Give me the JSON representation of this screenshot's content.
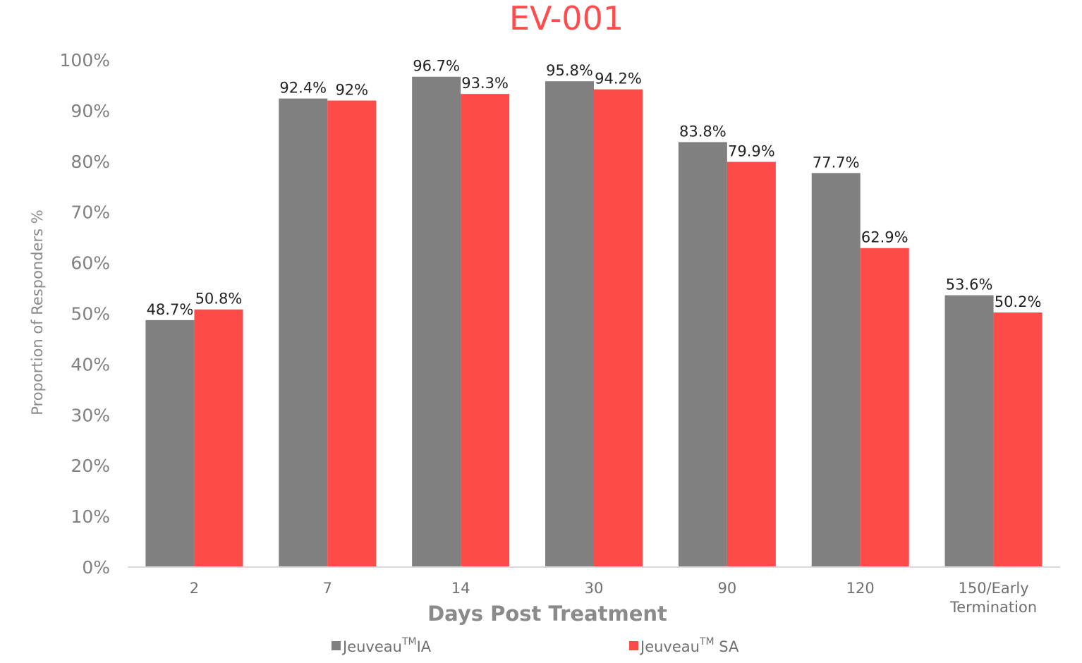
{
  "chart_data": {
    "type": "bar",
    "title": "EV-001",
    "xlabel": "Days Post Treatment",
    "ylabel": "Proportion of Responders %",
    "ylim": [
      0,
      100
    ],
    "yticks": [
      "0%",
      "10%",
      "20%",
      "30%",
      "40%",
      "50%",
      "60%",
      "70%",
      "80%",
      "90%",
      "100%"
    ],
    "grid": false,
    "legend_position": "bottom",
    "categories": [
      "2",
      "7",
      "14",
      "30",
      "90",
      "120",
      "150/Early Termination"
    ],
    "series": [
      {
        "name": "Jeuveau IA",
        "legend_base": "Jeuveau",
        "legend_sup": "TM",
        "legend_suffix": "IA",
        "color": "#808080",
        "values": [
          48.7,
          92.4,
          96.7,
          95.8,
          83.8,
          77.7,
          53.6
        ],
        "labels": [
          "48.7%",
          "92.4%",
          "96.7%",
          "95.8%",
          "83.8%",
          "77.7%",
          "53.6%"
        ]
      },
      {
        "name": "Jeuveau SA",
        "legend_base": "Jeuveau",
        "legend_sup": "TM",
        "legend_suffix": " SA",
        "color": "#ff4a4a",
        "values": [
          50.8,
          92,
          93.3,
          94.2,
          79.9,
          62.9,
          50.2
        ],
        "labels": [
          "50.8%",
          "92%",
          "93.3%",
          "94.2%",
          "79.9%",
          "62.9%",
          "50.2%"
        ]
      }
    ]
  }
}
